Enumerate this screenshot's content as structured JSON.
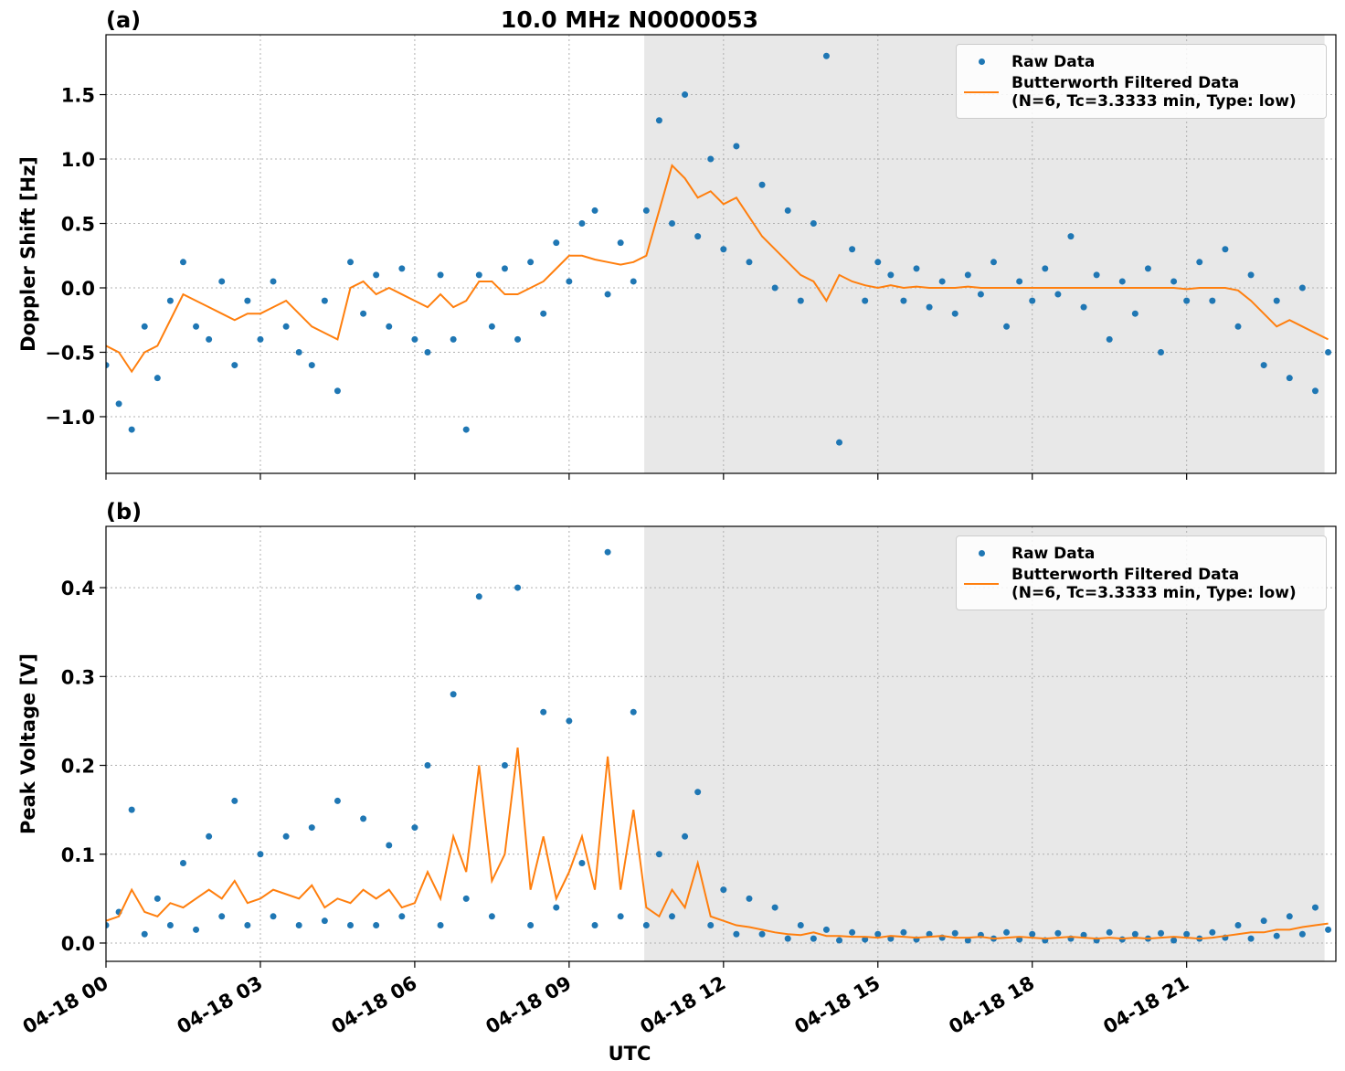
{
  "chart_data": [
    {
      "type": "line",
      "label": "(a)",
      "title": "10.0 MHz N0000053",
      "ylabel": "Doppler Shift [Hz]",
      "xlim": [
        0,
        23.9
      ],
      "ylim": [
        -1.44,
        1.965
      ],
      "grid": true,
      "shade": [
        10.46,
        23.68
      ],
      "legend": "upper right",
      "xticks": [
        {
          "value": 0,
          "label": "04-18 00"
        },
        {
          "value": 3,
          "label": "04-18 03"
        },
        {
          "value": 6,
          "label": "04-18 06"
        },
        {
          "value": 9,
          "label": "04-18 09"
        },
        {
          "value": 12,
          "label": "04-18 12"
        },
        {
          "value": 15,
          "label": "04-18 15"
        },
        {
          "value": 18,
          "label": "04-18 18"
        },
        {
          "value": 21,
          "label": "04-18 21"
        }
      ],
      "show_xtick_labels": false,
      "yticks": [
        {
          "value": -1.0,
          "label": "−1.0"
        },
        {
          "value": -0.5,
          "label": "−0.5"
        },
        {
          "value": 0.0,
          "label": "0.0"
        },
        {
          "value": 0.5,
          "label": "0.5"
        },
        {
          "value": 1.0,
          "label": "1.0"
        },
        {
          "value": 1.5,
          "label": "1.5"
        }
      ],
      "x": [
        0,
        0.25,
        0.5,
        0.75,
        1,
        1.25,
        1.5,
        1.75,
        2,
        2.25,
        2.5,
        2.75,
        3,
        3.25,
        3.5,
        3.75,
        4,
        4.25,
        4.5,
        4.75,
        5,
        5.25,
        5.5,
        5.75,
        6,
        6.25,
        6.5,
        6.75,
        7,
        7.25,
        7.5,
        7.75,
        8,
        8.25,
        8.5,
        8.75,
        9,
        9.25,
        9.5,
        9.75,
        10,
        10.25,
        10.5,
        10.75,
        11,
        11.25,
        11.5,
        11.75,
        12,
        12.25,
        12.5,
        12.75,
        13,
        13.25,
        13.5,
        13.75,
        14,
        14.25,
        14.5,
        14.75,
        15,
        15.25,
        15.5,
        15.75,
        16,
        16.25,
        16.5,
        16.75,
        17,
        17.25,
        17.5,
        17.75,
        18,
        18.25,
        18.5,
        18.75,
        19,
        19.25,
        19.5,
        19.75,
        20,
        20.25,
        20.5,
        20.75,
        21,
        21.25,
        21.5,
        21.75,
        22,
        22.25,
        22.5,
        22.75,
        23,
        23.25,
        23.5,
        23.75
      ],
      "series": [
        {
          "name": "Raw Data",
          "style": "points",
          "color": "#1f77b4",
          "values": [
            -0.6,
            -0.9,
            -1.1,
            -0.3,
            -0.7,
            -0.1,
            0.2,
            -0.3,
            -0.4,
            0.05,
            -0.6,
            -0.1,
            -0.4,
            0.05,
            -0.3,
            -0.5,
            -0.6,
            -0.1,
            -0.8,
            0.2,
            -0.2,
            0.1,
            -0.3,
            0.15,
            -0.4,
            -0.5,
            0.1,
            -0.4,
            -1.1,
            0.1,
            -0.3,
            0.15,
            -0.4,
            0.2,
            -0.2,
            0.35,
            0.05,
            0.5,
            0.6,
            -0.05,
            0.35,
            0.05,
            0.6,
            1.3,
            0.5,
            1.5,
            0.4,
            1.0,
            0.3,
            1.1,
            0.2,
            0.8,
            0.0,
            0.6,
            -0.1,
            0.5,
            1.8,
            -1.2,
            0.3,
            -0.1,
            0.2,
            0.1,
            -0.1,
            0.15,
            -0.15,
            0.05,
            -0.2,
            0.1,
            -0.05,
            0.2,
            -0.3,
            0.05,
            -0.1,
            0.15,
            -0.05,
            0.4,
            -0.15,
            0.1,
            -0.4,
            0.05,
            -0.2,
            0.15,
            -0.5,
            0.05,
            -0.1,
            0.2,
            -0.1,
            0.3,
            -0.3,
            0.1,
            -0.6,
            -0.1,
            -0.7,
            0.0,
            -0.8,
            -0.5
          ]
        },
        {
          "name": "Butterworth Filtered Data\n(N=6, Tc=3.3333 min, Type: low)",
          "style": "line",
          "color": "#ff7f0e",
          "values": [
            -0.45,
            -0.5,
            -0.65,
            -0.5,
            -0.45,
            -0.25,
            -0.05,
            -0.1,
            -0.15,
            -0.2,
            -0.25,
            -0.2,
            -0.2,
            -0.15,
            -0.1,
            -0.2,
            -0.3,
            -0.35,
            -0.4,
            0.0,
            0.05,
            -0.05,
            0.0,
            -0.05,
            -0.1,
            -0.15,
            -0.05,
            -0.15,
            -0.1,
            0.05,
            0.05,
            -0.05,
            -0.05,
            0.0,
            0.05,
            0.15,
            0.25,
            0.25,
            0.22,
            0.2,
            0.18,
            0.2,
            0.25,
            0.6,
            0.95,
            0.85,
            0.7,
            0.75,
            0.65,
            0.7,
            0.55,
            0.4,
            0.3,
            0.2,
            0.1,
            0.05,
            -0.1,
            0.1,
            0.05,
            0.02,
            0.0,
            0.02,
            0.0,
            0.01,
            0.0,
            0.0,
            0.0,
            0.01,
            0.0,
            0.0,
            0.0,
            0.0,
            0.0,
            0.0,
            0.0,
            0.0,
            0.0,
            0.0,
            0.0,
            0.0,
            0.0,
            0.0,
            0.0,
            0.0,
            -0.01,
            0.0,
            0.0,
            0.0,
            -0.02,
            -0.1,
            -0.2,
            -0.3,
            -0.25,
            -0.3,
            -0.35,
            -0.4
          ]
        }
      ]
    },
    {
      "type": "line",
      "label": "(b)",
      "ylabel": "Peak Voltage [V]",
      "xlabel": "UTC",
      "xlim": [
        0,
        23.9
      ],
      "ylim": [
        -0.0206,
        0.469
      ],
      "grid": true,
      "shade": [
        10.46,
        23.68
      ],
      "legend": "upper right",
      "xticks": [
        {
          "value": 0,
          "label": "04-18 00"
        },
        {
          "value": 3,
          "label": "04-18 03"
        },
        {
          "value": 6,
          "label": "04-18 06"
        },
        {
          "value": 9,
          "label": "04-18 09"
        },
        {
          "value": 12,
          "label": "04-18 12"
        },
        {
          "value": 15,
          "label": "04-18 15"
        },
        {
          "value": 18,
          "label": "04-18 18"
        },
        {
          "value": 21,
          "label": "04-18 21"
        }
      ],
      "show_xtick_labels": true,
      "yticks": [
        {
          "value": 0.0,
          "label": "0.0"
        },
        0.1,
        0.2,
        0.3,
        0.4
      ],
      "x": [
        0,
        0.25,
        0.5,
        0.75,
        1,
        1.25,
        1.5,
        1.75,
        2,
        2.25,
        2.5,
        2.75,
        3,
        3.25,
        3.5,
        3.75,
        4,
        4.25,
        4.5,
        4.75,
        5,
        5.25,
        5.5,
        5.75,
        6,
        6.25,
        6.5,
        6.75,
        7,
        7.25,
        7.5,
        7.75,
        8,
        8.25,
        8.5,
        8.75,
        9,
        9.25,
        9.5,
        9.75,
        10,
        10.25,
        10.5,
        10.75,
        11,
        11.25,
        11.5,
        11.75,
        12,
        12.25,
        12.5,
        12.75,
        13,
        13.25,
        13.5,
        13.75,
        14,
        14.25,
        14.5,
        14.75,
        15,
        15.25,
        15.5,
        15.75,
        16,
        16.25,
        16.5,
        16.75,
        17,
        17.25,
        17.5,
        17.75,
        18,
        18.25,
        18.5,
        18.75,
        19,
        19.25,
        19.5,
        19.75,
        20,
        20.25,
        20.5,
        20.75,
        21,
        21.25,
        21.5,
        21.75,
        22,
        22.25,
        22.5,
        22.75,
        23,
        23.25,
        23.5,
        23.75
      ],
      "series": [
        {
          "name": "Raw Data",
          "style": "points",
          "color": "#1f77b4",
          "values": [
            0.02,
            0.035,
            0.15,
            0.01,
            0.05,
            0.02,
            0.09,
            0.015,
            0.12,
            0.03,
            0.16,
            0.02,
            0.1,
            0.03,
            0.12,
            0.02,
            0.13,
            0.025,
            0.16,
            0.02,
            0.14,
            0.02,
            0.11,
            0.03,
            0.13,
            0.2,
            0.02,
            0.28,
            0.05,
            0.39,
            0.03,
            0.2,
            0.4,
            0.02,
            0.26,
            0.04,
            0.25,
            0.09,
            0.02,
            0.44,
            0.03,
            0.26,
            0.02,
            0.1,
            0.03,
            0.12,
            0.17,
            0.02,
            0.06,
            0.01,
            0.05,
            0.01,
            0.04,
            0.005,
            0.02,
            0.005,
            0.015,
            0.003,
            0.012,
            0.004,
            0.01,
            0.005,
            0.012,
            0.004,
            0.01,
            0.006,
            0.011,
            0.003,
            0.009,
            0.005,
            0.012,
            0.004,
            0.01,
            0.003,
            0.011,
            0.005,
            0.009,
            0.003,
            0.012,
            0.004,
            0.01,
            0.005,
            0.011,
            0.003,
            0.01,
            0.005,
            0.012,
            0.006,
            0.02,
            0.005,
            0.025,
            0.008,
            0.03,
            0.01,
            0.04,
            0.015
          ]
        },
        {
          "name": "Butterworth Filtered Data\n(N=6, Tc=3.3333 min, Type: low)",
          "style": "line",
          "color": "#ff7f0e",
          "values": [
            0.025,
            0.03,
            0.06,
            0.035,
            0.03,
            0.045,
            0.04,
            0.05,
            0.06,
            0.05,
            0.07,
            0.045,
            0.05,
            0.06,
            0.055,
            0.05,
            0.065,
            0.04,
            0.05,
            0.045,
            0.06,
            0.05,
            0.06,
            0.04,
            0.045,
            0.08,
            0.05,
            0.12,
            0.08,
            0.2,
            0.07,
            0.1,
            0.22,
            0.06,
            0.12,
            0.05,
            0.08,
            0.12,
            0.06,
            0.21,
            0.06,
            0.15,
            0.04,
            0.03,
            0.06,
            0.04,
            0.09,
            0.03,
            0.025,
            0.02,
            0.018,
            0.015,
            0.012,
            0.01,
            0.009,
            0.012,
            0.008,
            0.008,
            0.007,
            0.007,
            0.006,
            0.008,
            0.007,
            0.006,
            0.007,
            0.008,
            0.006,
            0.006,
            0.007,
            0.005,
            0.006,
            0.007,
            0.006,
            0.005,
            0.006,
            0.007,
            0.006,
            0.005,
            0.006,
            0.005,
            0.006,
            0.005,
            0.006,
            0.007,
            0.006,
            0.005,
            0.006,
            0.008,
            0.01,
            0.012,
            0.012,
            0.015,
            0.015,
            0.018,
            0.02,
            0.022
          ]
        }
      ]
    }
  ]
}
